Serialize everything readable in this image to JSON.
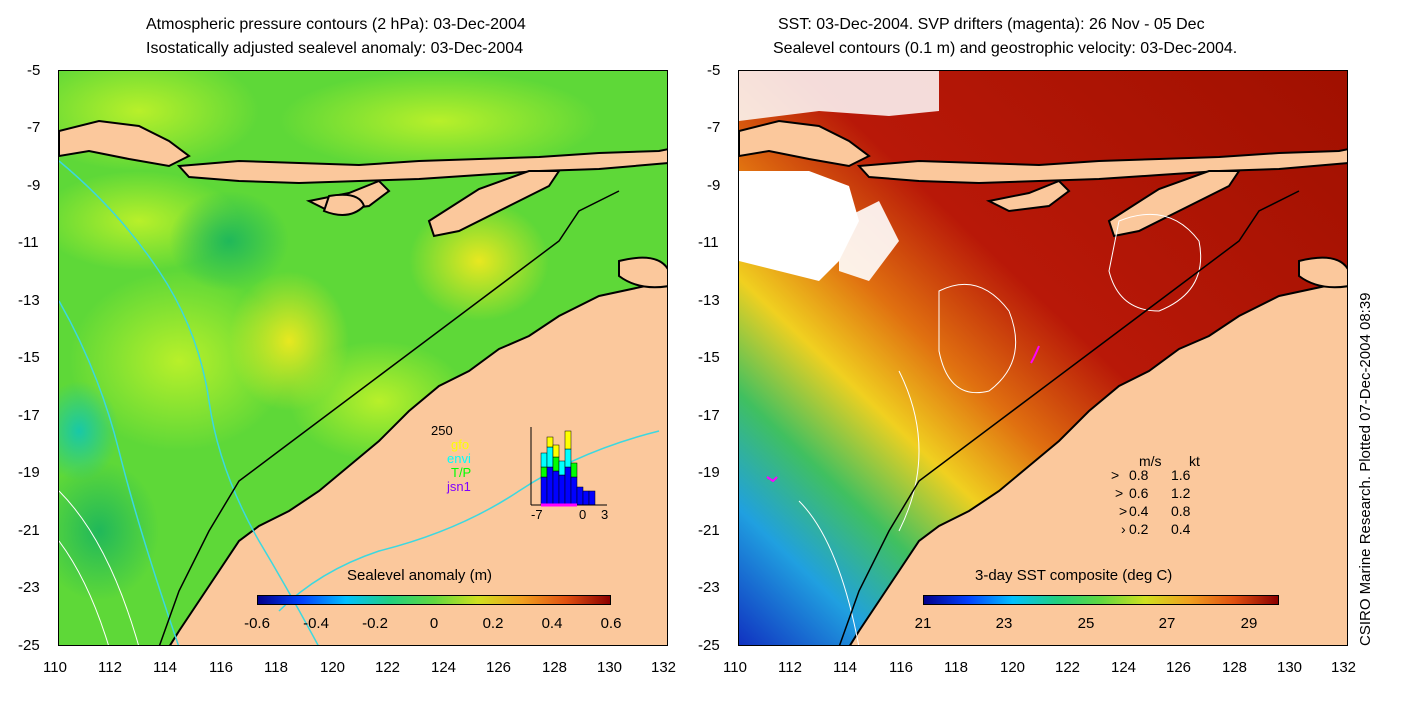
{
  "left_panel": {
    "title_line1": "Atmospheric pressure contours (2 hPa): 03-Dec-2004",
    "title_line2": "Isostatically adjusted sealevel anomaly: 03-Dec-2004",
    "colorbar_title": "Sealevel anomaly (m)",
    "colorbar_labels": [
      "-0.6",
      "-0.4",
      "-0.2",
      "0",
      "0.2",
      "0.4",
      "0.6"
    ],
    "inset": {
      "ymax_label": "250",
      "mission_labels": [
        "gfo",
        "envi",
        "T/P",
        "jsn1"
      ],
      "mission_colors": [
        "#ffff00",
        "#00ffff",
        "#00ff00",
        "#8000ff"
      ],
      "x_labels": [
        "-7",
        "0",
        "3"
      ]
    }
  },
  "right_panel": {
    "title_line1": "SST: 03-Dec-2004. SVP drifters (magenta): 26 Nov - 05 Dec",
    "title_line2": "Sealevel contours (0.1 m) and geostrophic velocity: 03-Dec-2004.",
    "colorbar_title": "3-day SST composite (deg C)",
    "colorbar_labels": [
      "21",
      "23",
      "25",
      "27",
      "29"
    ],
    "velocity_legend": {
      "header_ms": "m/s",
      "header_kt": "kt",
      "rows": [
        {
          "ms": "0.8",
          "kt": "1.6"
        },
        {
          "ms": "0.6",
          "kt": "1.2"
        },
        {
          "ms": "0.4",
          "kt": "0.8"
        },
        {
          "ms": "0.2",
          "kt": "0.4"
        }
      ]
    }
  },
  "axes": {
    "y_labels": [
      "-5",
      "-7",
      "-9",
      "-11",
      "-13",
      "-15",
      "-17",
      "-19",
      "-21",
      "-23",
      "-25"
    ],
    "x_labels": [
      "110",
      "112",
      "114",
      "116",
      "118",
      "120",
      "122",
      "124",
      "126",
      "128",
      "130",
      "132"
    ]
  },
  "credit": "CSIRO Marine Research. Plotted 07-Dec-2004 08:39",
  "colors": {
    "land": "#fbc89c",
    "coast": "#000000",
    "contour_cyan": "#3cd8e0"
  }
}
